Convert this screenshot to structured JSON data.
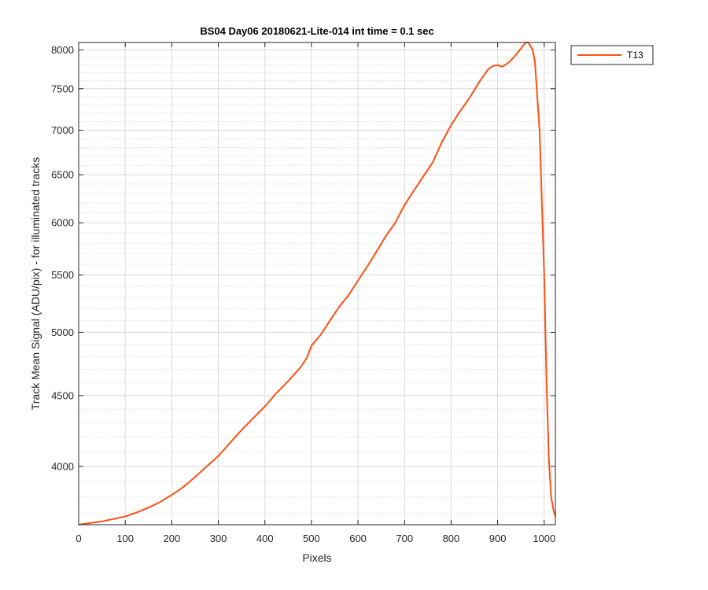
{
  "chart_data": {
    "type": "line",
    "title": "BS04 Day06 20180621-Lite-014 int time = 0.1 sec",
    "xlabel": "Pixels",
    "ylabel": "Track Mean Signal (ADU/pix) - for illuminated tracks",
    "y_scale": "log",
    "xlim": [
      0,
      1024
    ],
    "ylim": [
      3630,
      8100
    ],
    "x_ticks": [
      0,
      100,
      200,
      300,
      400,
      500,
      600,
      700,
      800,
      900,
      1000
    ],
    "y_ticks": [
      4000,
      4500,
      5000,
      5500,
      6000,
      6500,
      7000,
      7500,
      8000
    ],
    "grid": "on",
    "minor_grid": "on",
    "legend_position": "outside-top-right",
    "colors": {
      "series": "#ff4f12",
      "axes": "#262626",
      "grid": "#d9d9d9"
    },
    "series": [
      {
        "name": "T13",
        "x": [
          0,
          25,
          50,
          75,
          100,
          125,
          150,
          175,
          200,
          225,
          250,
          275,
          300,
          325,
          350,
          375,
          400,
          425,
          450,
          475,
          490,
          500,
          520,
          540,
          560,
          580,
          600,
          620,
          640,
          660,
          680,
          700,
          720,
          740,
          760,
          780,
          800,
          820,
          840,
          860,
          880,
          890,
          900,
          910,
          925,
          940,
          950,
          960,
          965,
          970,
          975,
          980,
          990,
          1000,
          1005,
          1010,
          1015,
          1020,
          1024
        ],
        "y": [
          3630,
          3640,
          3650,
          3665,
          3680,
          3705,
          3735,
          3770,
          3815,
          3865,
          3930,
          4000,
          4070,
          4160,
          4250,
          4335,
          4420,
          4520,
          4610,
          4710,
          4790,
          4890,
          4980,
          5100,
          5220,
          5320,
          5450,
          5580,
          5720,
          5870,
          6000,
          6180,
          6330,
          6480,
          6630,
          6860,
          7060,
          7230,
          7390,
          7580,
          7750,
          7790,
          7800,
          7780,
          7840,
          7940,
          8020,
          8100,
          8100,
          8060,
          8000,
          7850,
          7000,
          5500,
          4600,
          4050,
          3800,
          3720,
          3680
        ]
      }
    ]
  }
}
